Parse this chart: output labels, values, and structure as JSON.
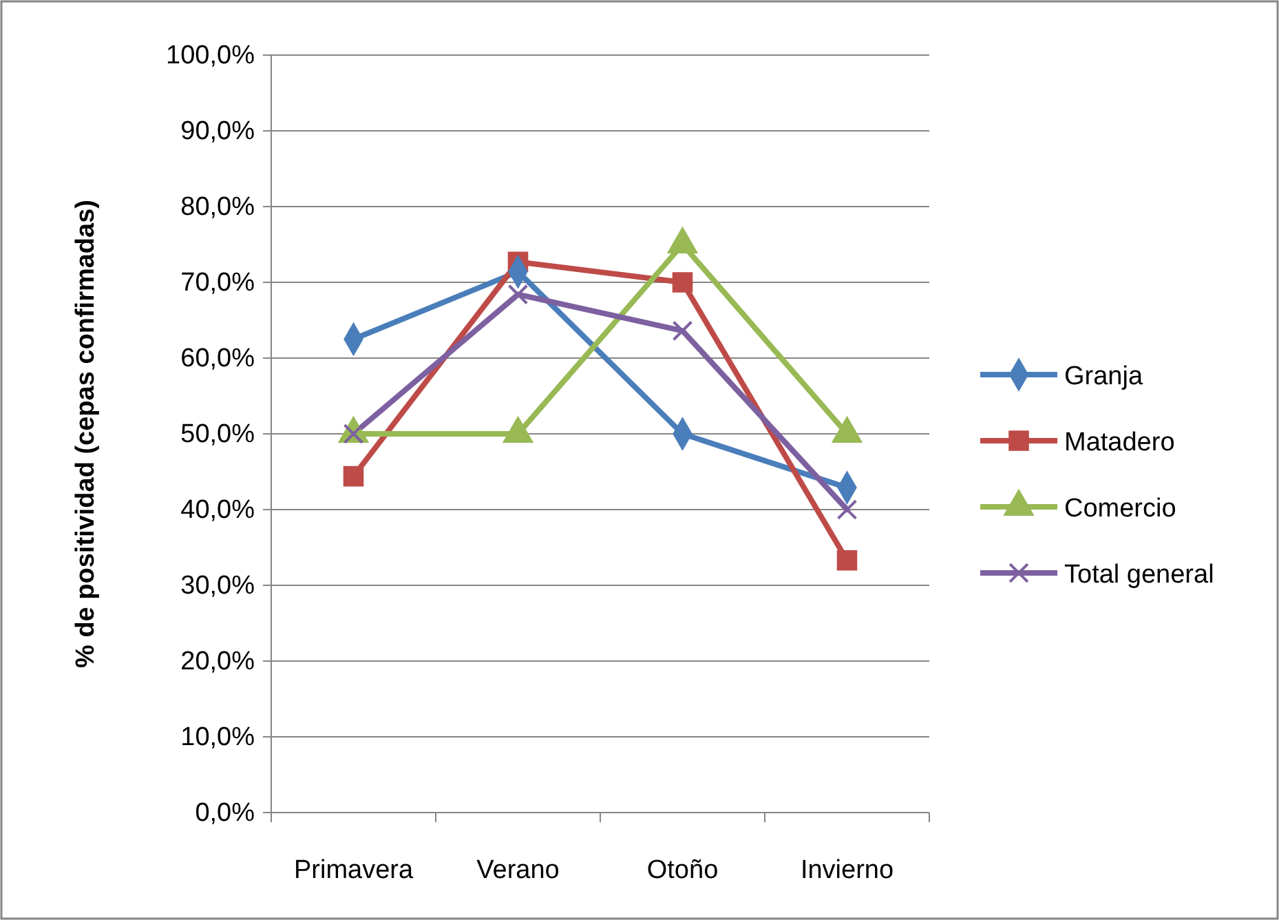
{
  "chart_data": {
    "type": "line",
    "ylabel": "% de positividad  (cepas confirmadas)",
    "categories": [
      "Primavera",
      "Verano",
      "Otoño",
      "Invierno"
    ],
    "series": [
      {
        "name": "Granja",
        "color": "#4a7ebb",
        "marker": "diamond",
        "values": [
          62.5,
          71.4,
          50,
          42.9
        ]
      },
      {
        "name": "Matadero",
        "color": "#be4b48",
        "marker": "square",
        "values": [
          44.4,
          72.7,
          70,
          33.3
        ]
      },
      {
        "name": "Comercio",
        "color": "#98b954",
        "marker": "triangle",
        "values": [
          50,
          50,
          75,
          50
        ]
      },
      {
        "name": "Total general",
        "color": "#7d60a0",
        "marker": "cross",
        "values": [
          50,
          68.4,
          63.6,
          40
        ]
      }
    ],
    "ylim": [
      0,
      100
    ],
    "yticks": [
      {
        "value": 0,
        "label": "0,0%"
      },
      {
        "value": 10,
        "label": "10,0%"
      },
      {
        "value": 20,
        "label": "20,0%"
      },
      {
        "value": 30,
        "label": "30,0%"
      },
      {
        "value": 40,
        "label": "40,0%"
      },
      {
        "value": 50,
        "label": "50,0%"
      },
      {
        "value": 60,
        "label": "60,0%"
      },
      {
        "value": 70,
        "label": "70,0%"
      },
      {
        "value": 80,
        "label": "80,0%"
      },
      {
        "value": 90,
        "label": "90,0%"
      },
      {
        "value": 100,
        "label": "100,0%"
      }
    ],
    "grid": "y",
    "legend": "right",
    "line_style": "solid"
  }
}
